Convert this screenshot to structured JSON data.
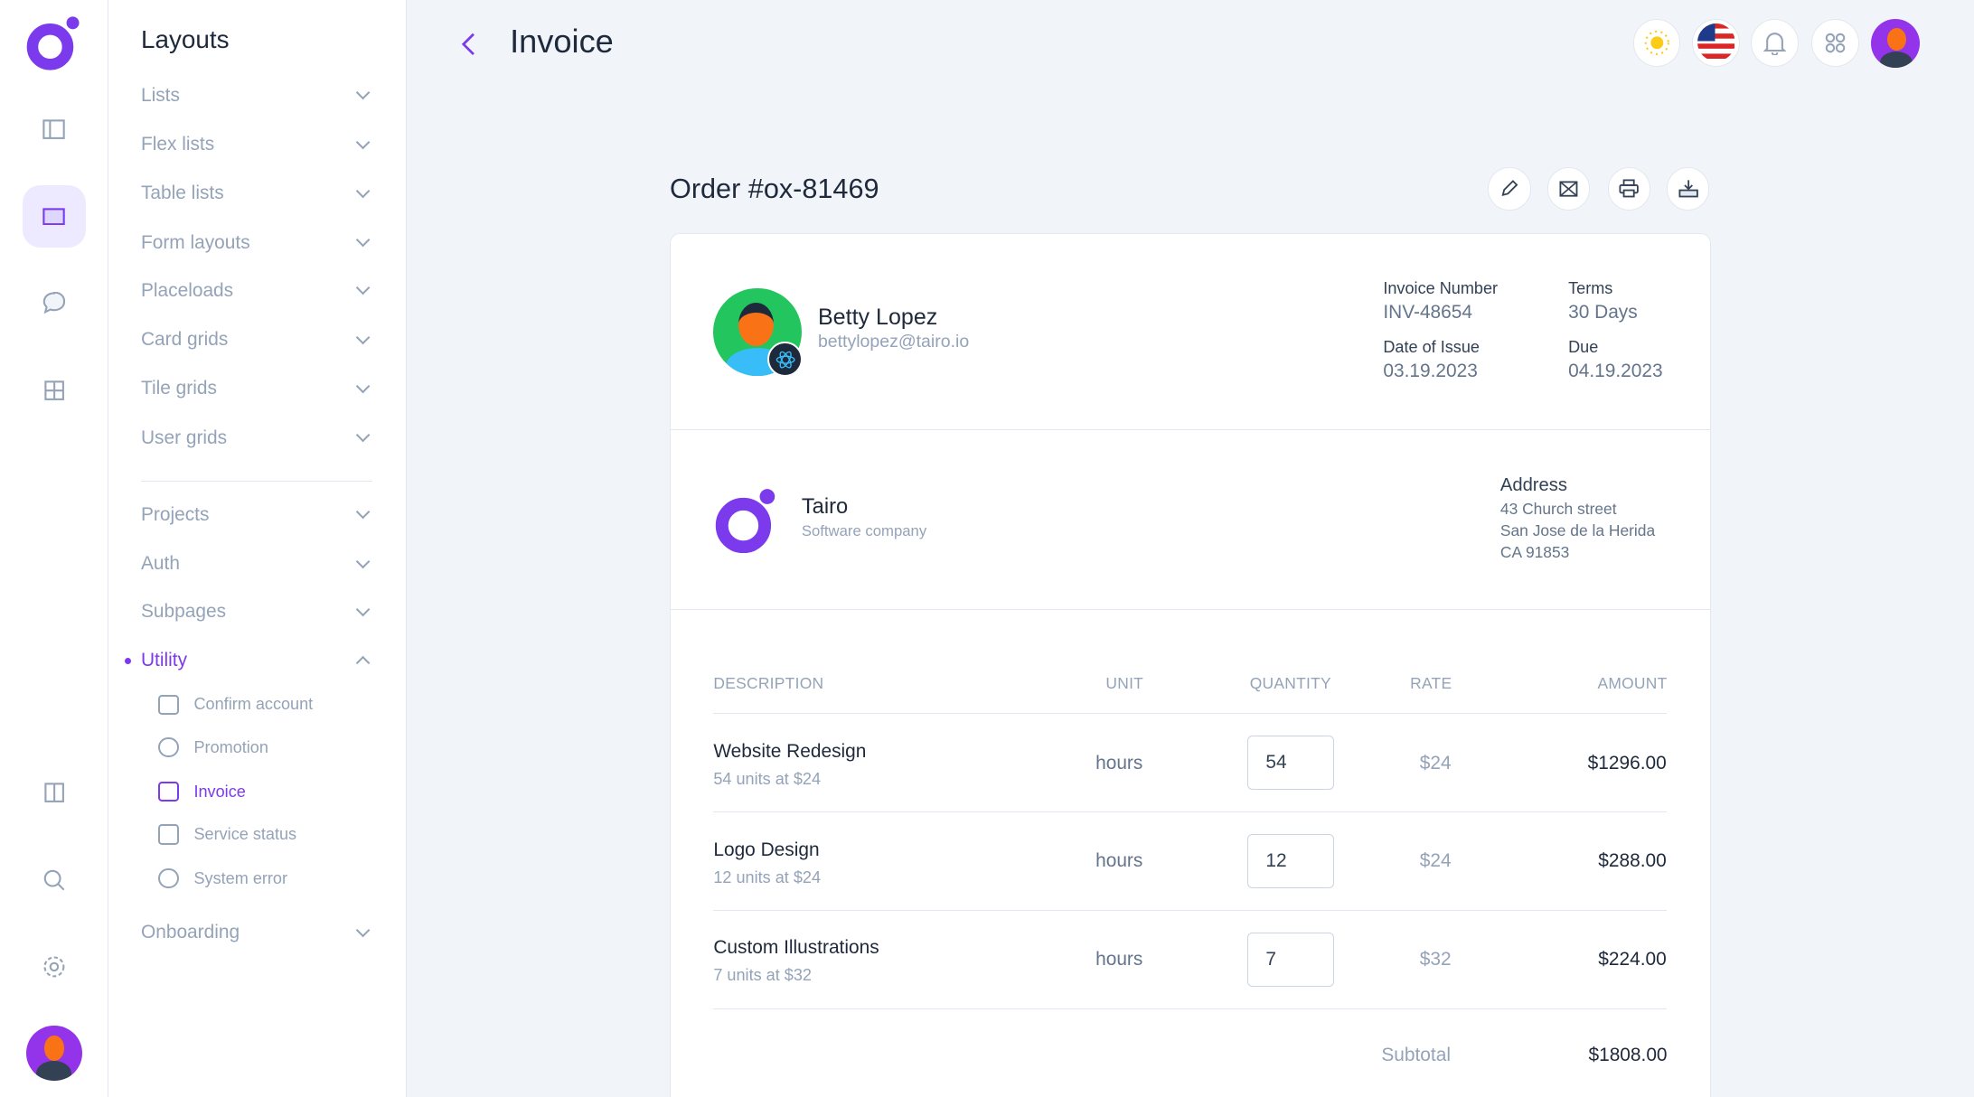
{
  "rail": {
    "icons": [
      "logo",
      "sidebar-icon",
      "layout-icon",
      "chat-icon",
      "grid-icon",
      "columns-icon",
      "search-icon",
      "gear-icon",
      "avatar"
    ]
  },
  "panel": {
    "title": "Layouts",
    "items": [
      "Lists",
      "Flex lists",
      "Table lists",
      "Form layouts",
      "Placeloads",
      "Card grids",
      "Tile grids",
      "User grids"
    ],
    "items2": [
      "Projects",
      "Auth",
      "Subpages"
    ],
    "utility": "Utility",
    "utility_items": [
      "Confirm account",
      "Promotion",
      "Invoice",
      "Service status",
      "System error"
    ],
    "onboarding": "Onboarding"
  },
  "header": {
    "title": "Invoice"
  },
  "order": {
    "title": "Order #ox-81469"
  },
  "customer": {
    "name": "Betty Lopez",
    "email": "bettylopez@tairo.io"
  },
  "meta": {
    "invoice_number_label": "Invoice Number",
    "invoice_number": "INV-48654",
    "terms_label": "Terms",
    "terms": "30 Days",
    "issue_label": "Date of Issue",
    "issue": "03.19.2023",
    "due_label": "Due",
    "due": "04.19.2023"
  },
  "company": {
    "name": "Tairo",
    "tagline": "Software company",
    "address_label": "Address",
    "address": [
      "43 Church street",
      "San Jose de la Herida",
      "CA 91853"
    ]
  },
  "table": {
    "headers": [
      "DESCRIPTION",
      "UNIT",
      "QUANTITY",
      "RATE",
      "AMOUNT"
    ],
    "rows": [
      {
        "desc": "Website Redesign",
        "sub": "54 units at $24",
        "unit": "hours",
        "qty": "54",
        "rate": "$24",
        "amount": "$1296.00"
      },
      {
        "desc": "Logo Design",
        "sub": "12 units at $24",
        "unit": "hours",
        "qty": "12",
        "rate": "$24",
        "amount": "$288.00"
      },
      {
        "desc": "Custom Illustrations",
        "sub": "7 units at $32",
        "unit": "hours",
        "qty": "7",
        "rate": "$32",
        "amount": "$224.00"
      }
    ],
    "subtotal_label": "Subtotal",
    "subtotal": "$1808.00"
  },
  "colors": {
    "accent": "#7c3aed",
    "bg": "#f1f4f9"
  }
}
